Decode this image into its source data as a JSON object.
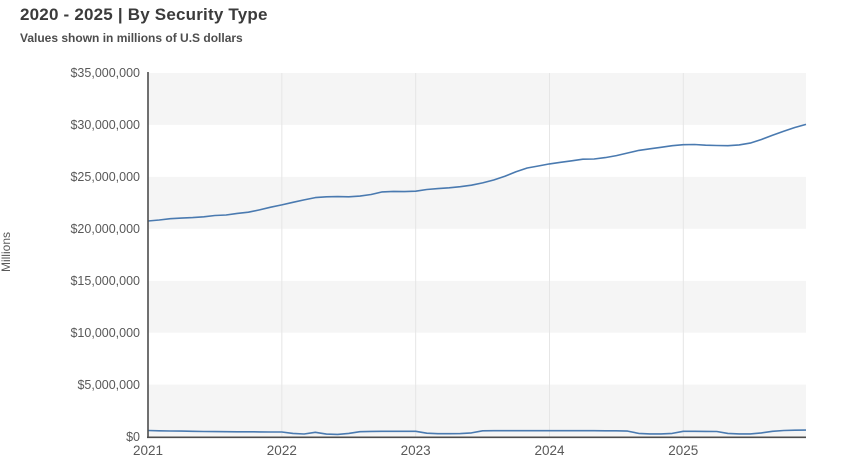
{
  "header": {
    "title": "2020 - 2025 | By Security Type",
    "subtitle": "Values shown in millions of U.S dollars"
  },
  "colors": {
    "line_blue": "#4a7ab0",
    "axis": "#4d4d4d",
    "band_gray": "#f5f5f5",
    "band_white": "#ffffff",
    "gridline": "#e6e6e6",
    "tick_text": "#595959",
    "title_text": "#3b3b3b"
  },
  "chart_data": {
    "type": "line",
    "title": "2020 - 2025 | By Security Type",
    "subtitle": "Values shown in millions of U.S dollars",
    "xlabel": "",
    "ylabel": "Millions",
    "x_unit": "month",
    "x_start": "2021-01",
    "x_end": "2025-12",
    "x_tick_labels": [
      "2021",
      "2022",
      "2023",
      "2024",
      "2025"
    ],
    "x_tick_month_index": [
      0,
      12,
      24,
      36,
      48
    ],
    "ylim": [
      0,
      35000000
    ],
    "y_tick_values": [
      0,
      5000000,
      10000000,
      15000000,
      20000000,
      25000000,
      30000000,
      35000000
    ],
    "y_tick_labels": [
      "$0",
      "$5,000,000",
      "$10,000,000",
      "$15,000,000",
      "$20,000,000",
      "$25,000,000",
      "$30,000,000",
      "$35,000,000"
    ],
    "grid": {
      "vertical_gridlines": true,
      "horizontal_band_shading": true
    },
    "legend_position": "none",
    "series": [
      {
        "name": "series_1_large",
        "color": "#4a7ab0",
        "values": [
          20750000,
          20850000,
          20970000,
          21030000,
          21080000,
          21150000,
          21280000,
          21330000,
          21480000,
          21600000,
          21820000,
          22080000,
          22300000,
          22550000,
          22780000,
          23000000,
          23080000,
          23100000,
          23080000,
          23150000,
          23300000,
          23550000,
          23600000,
          23580000,
          23620000,
          23780000,
          23870000,
          23950000,
          24050000,
          24200000,
          24420000,
          24700000,
          25050000,
          25500000,
          25850000,
          26050000,
          26250000,
          26400000,
          26550000,
          26700000,
          26720000,
          26850000,
          27050000,
          27300000,
          27550000,
          27700000,
          27850000,
          28000000,
          28100000,
          28120000,
          28050000,
          28020000,
          28000000,
          28080000,
          28250000,
          28600000,
          29000000,
          29400000,
          29750000,
          30050000
        ]
      },
      {
        "name": "series_2_small",
        "color": "#4a7ab0",
        "values": [
          580000,
          550000,
          530000,
          520000,
          500000,
          480000,
          470000,
          460000,
          450000,
          450000,
          440000,
          430000,
          430000,
          300000,
          240000,
          400000,
          230000,
          200000,
          300000,
          460000,
          490000,
          500000,
          500000,
          500000,
          500000,
          320000,
          270000,
          270000,
          280000,
          350000,
          550000,
          560000,
          560000,
          560000,
          560000,
          560000,
          560000,
          560000,
          560000,
          560000,
          560000,
          550000,
          550000,
          520000,
          300000,
          250000,
          250000,
          300000,
          500000,
          500000,
          490000,
          480000,
          300000,
          250000,
          250000,
          350000,
          500000,
          580000,
          610000,
          620000
        ]
      }
    ]
  }
}
